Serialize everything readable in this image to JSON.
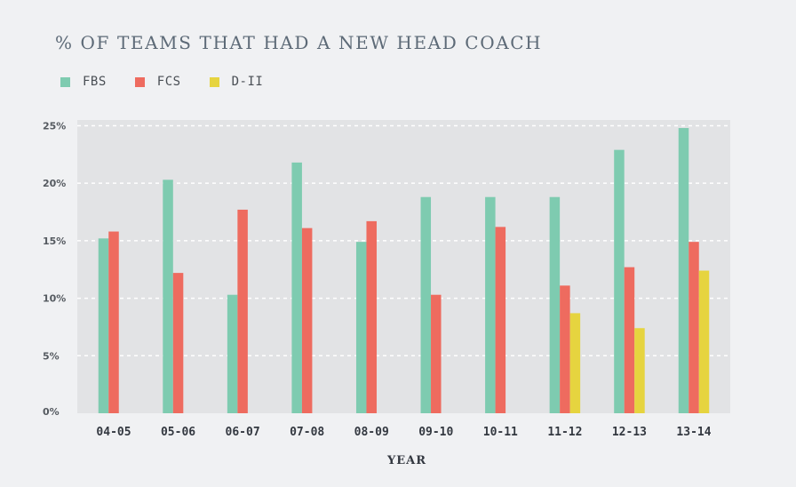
{
  "chart_data": {
    "type": "bar",
    "title": "% OF TEAMS THAT HAD A NEW HEAD COACH",
    "xlabel": "YEAR",
    "ylabel": "",
    "categories": [
      "04-05",
      "05-06",
      "06-07",
      "07-08",
      "08-09",
      "09-10",
      "10-11",
      "11-12",
      "12-13",
      "13-14"
    ],
    "yticks": [
      "0%",
      "5%",
      "10%",
      "15%",
      "20%",
      "25%"
    ],
    "ylim": [
      0,
      25.5
    ],
    "grid": true,
    "legend_position": "top-left",
    "series": [
      {
        "name": "FBS",
        "color": "#7ecbb0",
        "values": [
          15.2,
          20.3,
          10.3,
          21.8,
          14.9,
          18.8,
          18.8,
          18.8,
          22.9,
          24.8
        ]
      },
      {
        "name": "FCS",
        "color": "#ee6b5f",
        "values": [
          15.8,
          12.2,
          17.7,
          16.1,
          16.7,
          10.3,
          16.2,
          11.1,
          12.7,
          14.9
        ]
      },
      {
        "name": "D-II",
        "color": "#e6d43f",
        "values": [
          0,
          0,
          0,
          0,
          0,
          0,
          0,
          8.7,
          7.4,
          12.4
        ]
      }
    ]
  }
}
